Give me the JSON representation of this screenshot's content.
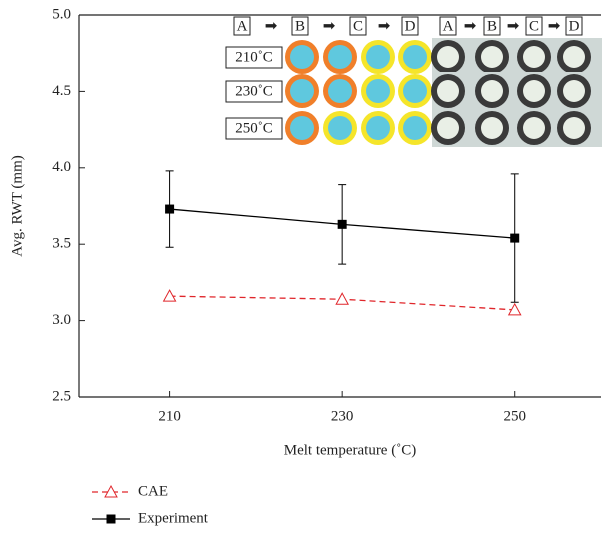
{
  "chart_data": {
    "type": "line",
    "x_label": "Melt temperature (˚C)",
    "y_label": "Avg. RWT (mm)",
    "x": [
      210,
      230,
      250
    ],
    "series": [
      {
        "name": "CAE",
        "color": "#e0262b",
        "values": [
          3.16,
          3.14,
          3.07
        ]
      },
      {
        "name": "Experiment",
        "color": "#000000",
        "values": [
          3.73,
          3.63,
          3.54
        ],
        "errors": [
          0.25,
          0.26,
          0.42
        ]
      }
    ],
    "xlim": [
      199.5,
      260
    ],
    "xticks": [
      210,
      230,
      250
    ],
    "ylim": [
      2.5,
      5.0
    ],
    "yticks": [
      2.5,
      {
        "value": 3,
        "label": "3.0"
      },
      3.5,
      {
        "value": 4,
        "label": "4.0"
      },
      4.5,
      {
        "value": 5,
        "label": "5.0"
      }
    ],
    "inset": {
      "steps": [
        "A",
        "B",
        "C",
        "D"
      ],
      "temps": [
        "210˚C",
        "230˚C",
        "250˚C"
      ]
    }
  }
}
